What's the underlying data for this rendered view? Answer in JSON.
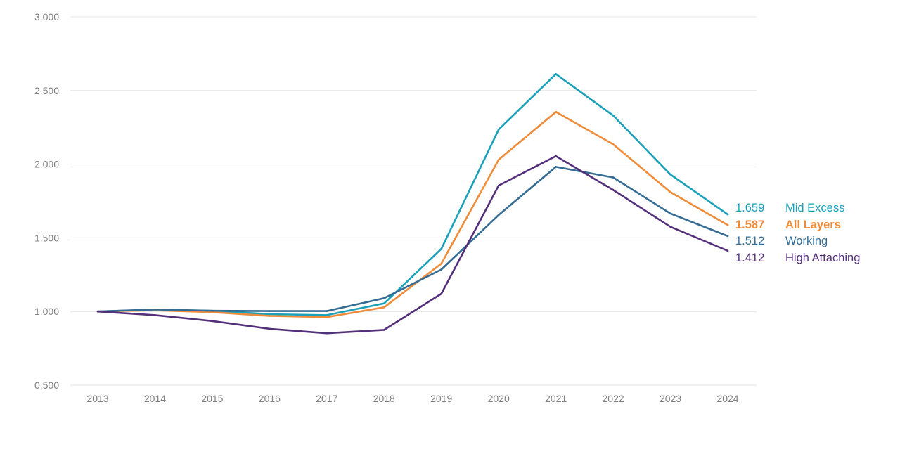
{
  "chart_data": {
    "type": "line",
    "title": "",
    "xlabel": "",
    "ylabel": "",
    "x": [
      "2013",
      "2014",
      "2015",
      "2016",
      "2017",
      "2018",
      "2019",
      "2020",
      "2021",
      "2022",
      "2023",
      "2024"
    ],
    "ylim": [
      0.5,
      3.0
    ],
    "yticks": [
      "0.500",
      "1.000",
      "1.500",
      "2.000",
      "2.500",
      "3.000"
    ],
    "ytick_values": [
      0.5,
      1.0,
      1.5,
      2.0,
      2.5,
      3.0
    ],
    "grid": "horizontal",
    "legend": "inline-right",
    "series": [
      {
        "name": "Mid Excess",
        "end_label": "1.659",
        "color": "#1aa1b9",
        "bold": false,
        "values": [
          1.0,
          1.012,
          1.005,
          0.982,
          0.975,
          1.055,
          1.425,
          2.235,
          2.612,
          2.33,
          1.93,
          1.659
        ]
      },
      {
        "name": "All Layers",
        "end_label": "1.587",
        "color": "#ef8c3a",
        "bold": true,
        "values": [
          1.0,
          1.008,
          0.995,
          0.97,
          0.962,
          1.028,
          1.325,
          2.03,
          2.355,
          2.135,
          1.81,
          1.587
        ]
      },
      {
        "name": "Working",
        "end_label": "1.512",
        "color": "#346c93",
        "bold": false,
        "values": [
          1.0,
          1.014,
          1.005,
          1.003,
          1.003,
          1.09,
          1.285,
          1.655,
          1.982,
          1.91,
          1.665,
          1.512
        ]
      },
      {
        "name": "High Attaching",
        "end_label": "1.412",
        "color": "#54307a",
        "bold": false,
        "values": [
          1.0,
          0.975,
          0.935,
          0.882,
          0.852,
          0.875,
          1.12,
          1.855,
          2.055,
          1.825,
          1.575,
          1.412
        ]
      }
    ]
  }
}
